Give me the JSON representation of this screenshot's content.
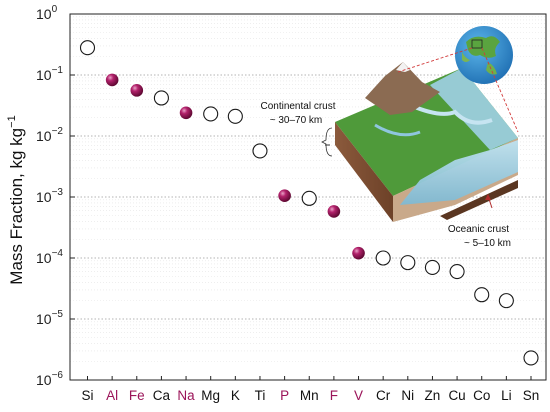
{
  "chart_data": {
    "type": "scatter",
    "ylabel": "Mass Fraction, kg kg",
    "ylabel_sup": "−1",
    "y_scale": "log",
    "ylim": [
      1e-06,
      1
    ],
    "y_ticks": [
      {
        "value": 1,
        "base": "10",
        "exp": "0"
      },
      {
        "value": 0.1,
        "base": "10",
        "exp": "−1"
      },
      {
        "value": 0.01,
        "base": "10",
        "exp": "−2"
      },
      {
        "value": 0.001,
        "base": "10",
        "exp": "−3"
      },
      {
        "value": 0.0001,
        "base": "10",
        "exp": "−4"
      },
      {
        "value": 1e-05,
        "base": "10",
        "exp": "−5"
      },
      {
        "value": 1e-06,
        "base": "10",
        "exp": "−6"
      }
    ],
    "grid": "major dotted, minor dotted",
    "highlight_color": "#9b1459",
    "normal_color": "#111111",
    "points": [
      {
        "element": "Si",
        "value": 0.28,
        "highlight": false
      },
      {
        "element": "Al",
        "value": 0.083,
        "highlight": true
      },
      {
        "element": "Fe",
        "value": 0.056,
        "highlight": true
      },
      {
        "element": "Ca",
        "value": 0.042,
        "highlight": false
      },
      {
        "element": "Na",
        "value": 0.024,
        "highlight": true
      },
      {
        "element": "Mg",
        "value": 0.023,
        "highlight": false
      },
      {
        "element": "K",
        "value": 0.021,
        "highlight": false
      },
      {
        "element": "Ti",
        "value": 0.0057,
        "highlight": false
      },
      {
        "element": "P",
        "value": 0.00105,
        "highlight": true
      },
      {
        "element": "Mn",
        "value": 0.00095,
        "highlight": false
      },
      {
        "element": "F",
        "value": 0.00058,
        "highlight": true
      },
      {
        "element": "V",
        "value": 0.00012,
        "highlight": true
      },
      {
        "element": "Cr",
        "value": 0.0001,
        "highlight": false
      },
      {
        "element": "Ni",
        "value": 8.4e-05,
        "highlight": false
      },
      {
        "element": "Zn",
        "value": 7e-05,
        "highlight": false
      },
      {
        "element": "Cu",
        "value": 6e-05,
        "highlight": false
      },
      {
        "element": "Co",
        "value": 2.5e-05,
        "highlight": false
      },
      {
        "element": "Li",
        "value": 2e-05,
        "highlight": false
      },
      {
        "element": "Sn",
        "value": 2.3e-06,
        "highlight": false
      }
    ],
    "inset": {
      "continental_label": "Continental crust",
      "continental_range": "~ 30–70 km",
      "oceanic_label": "Oceanic crust",
      "oceanic_range": "~ 5–10 km"
    }
  }
}
